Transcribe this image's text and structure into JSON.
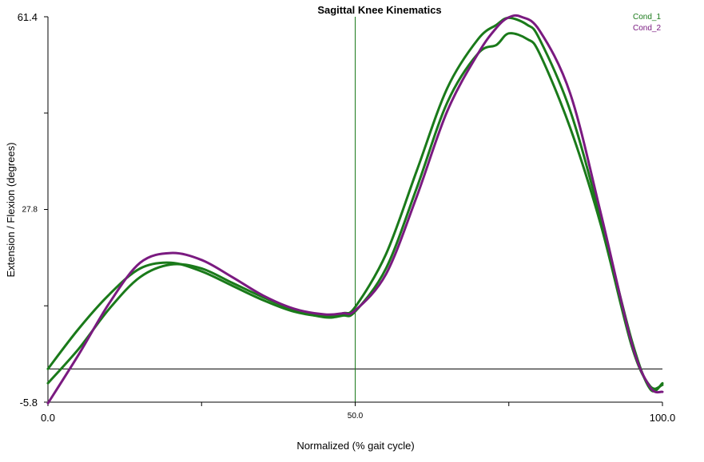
{
  "chart_data": {
    "type": "line",
    "title": "Sagittal Knee Kinematics",
    "xlabel": "Normalized (% gait cycle)",
    "ylabel": "Extension / Flexion (degrees)",
    "xlim": [
      0,
      100
    ],
    "ylim": [
      -5.8,
      61.4
    ],
    "x_ticks": [
      {
        "value": 0,
        "label": "0.0"
      },
      {
        "value": 25,
        "label": ""
      },
      {
        "value": 50,
        "label": "50.0"
      },
      {
        "value": 75,
        "label": ""
      },
      {
        "value": 100,
        "label": "100.0"
      }
    ],
    "y_ticks": [
      {
        "value": 61.4,
        "label": "61.4"
      },
      {
        "value": 44.6,
        "label": ""
      },
      {
        "value": 27.8,
        "label": "27.8"
      },
      {
        "value": 11.0,
        "label": ""
      },
      {
        "value": -5.8,
        "label": "-5.8"
      }
    ],
    "zero_line": 0,
    "vertical_marker": 50,
    "legend": {
      "position": "top-right"
    },
    "series": [
      {
        "name": "Cond_1",
        "color": "#1a7a1a",
        "x": [
          0,
          5,
          10,
          15,
          20,
          25,
          30,
          35,
          40,
          45,
          48,
          50,
          55,
          60,
          65,
          70,
          73,
          75,
          78,
          80,
          85,
          90,
          95,
          98,
          100
        ],
        "y": [
          0.0,
          7.0,
          13.0,
          17.5,
          18.5,
          17.0,
          14.5,
          12.0,
          10.0,
          9.2,
          9.7,
          10.8,
          20.0,
          34.5,
          49.0,
          57.5,
          60.0,
          61.2,
          60.0,
          57.5,
          45.0,
          26.0,
          5.0,
          -3.5,
          -2.5
        ]
      },
      {
        "name": "Cond_1",
        "color": "#1a7a1a",
        "x": [
          0,
          5,
          10,
          15,
          20,
          25,
          30,
          35,
          40,
          45,
          48,
          50,
          55,
          60,
          65,
          70,
          73,
          75,
          78,
          80,
          85,
          90,
          95,
          98,
          100
        ],
        "y": [
          -2.5,
          3.5,
          10.5,
          16.0,
          18.2,
          17.5,
          15.0,
          12.5,
          10.3,
          9.0,
          9.3,
          10.0,
          17.5,
          31.5,
          46.5,
          55.0,
          56.5,
          58.5,
          57.5,
          55.0,
          42.0,
          25.0,
          4.0,
          -3.0,
          -2.8
        ]
      },
      {
        "name": "Cond_2",
        "color": "#7a1a80",
        "x": [
          0,
          5,
          10,
          15,
          20,
          25,
          30,
          35,
          40,
          45,
          48,
          50,
          55,
          60,
          65,
          70,
          73,
          75,
          77,
          80,
          85,
          90,
          95,
          98,
          100
        ],
        "y": [
          -6.0,
          2.5,
          11.5,
          18.5,
          20.2,
          19.0,
          16.0,
          12.8,
          10.5,
          9.5,
          9.7,
          10.2,
          16.5,
          30.0,
          45.0,
          55.0,
          59.5,
          61.3,
          61.4,
          59.0,
          48.0,
          27.0,
          4.5,
          -3.2,
          -4.0
        ]
      }
    ]
  }
}
